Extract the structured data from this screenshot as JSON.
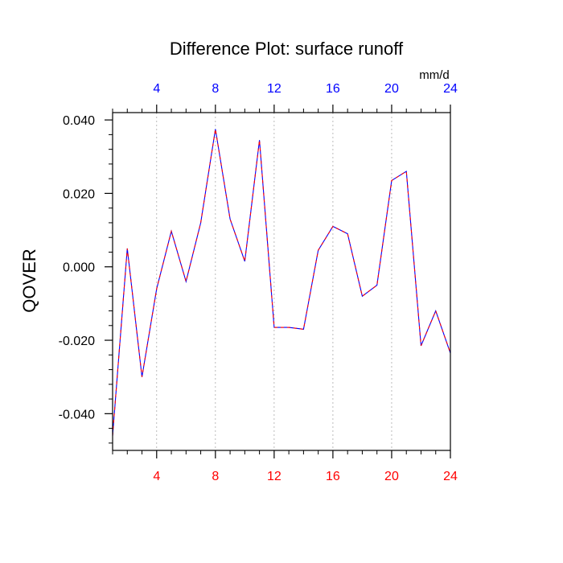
{
  "chart_data": {
    "type": "line",
    "title": "Difference Plot: surface runoff",
    "units": "mm/d",
    "ylabel": "QOVER",
    "xlabel": "",
    "xlim": [
      1,
      24
    ],
    "ylim": [
      -0.05,
      0.042
    ],
    "x_ticks": [
      4,
      8,
      12,
      16,
      20,
      24
    ],
    "y_ticks": [
      -0.04,
      -0.02,
      0.0,
      0.02,
      0.04
    ],
    "y_tick_labels": [
      "-0.040",
      "-0.020",
      "0.000",
      "0.020",
      "0.040"
    ],
    "grid": "vertical-dotted",
    "colors": {
      "bottom_ticks": "#ff0000",
      "top_ticks": "#0000ff",
      "line_primary": "#0000ff",
      "line_secondary": "#ff0000"
    },
    "series": [
      {
        "x": [
          1,
          2,
          3,
          4,
          5,
          6,
          7,
          8,
          9,
          10,
          11,
          12,
          13,
          14,
          15,
          16,
          17,
          18,
          19,
          20,
          21,
          22,
          23,
          24
        ],
        "values": [
          -0.046,
          0.005,
          -0.03,
          -0.006,
          0.0097,
          -0.004,
          0.012,
          0.0375,
          0.013,
          0.0015,
          0.0345,
          -0.0165,
          -0.0165,
          -0.017,
          0.0045,
          0.011,
          0.009,
          -0.008,
          -0.005,
          0.0235,
          0.026,
          -0.0215,
          -0.012,
          -0.0235
        ]
      }
    ]
  }
}
